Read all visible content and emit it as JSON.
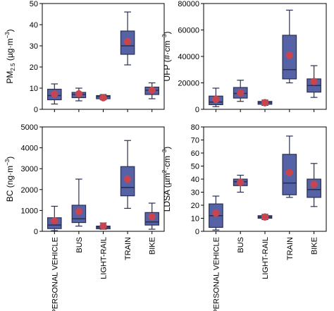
{
  "categories": [
    "PERSONAL VEHICLE",
    "BUS",
    "LIGHT-RAIL",
    "TRAIN",
    "BIKE"
  ],
  "colors": {
    "box_fill": "#5563a6",
    "box_edge": "#2a2f52",
    "mean_marker": "#c8444f",
    "axis": "#000000"
  },
  "chart_data": [
    {
      "type": "boxplot",
      "ylabel_main": "PM",
      "ylabel_sub": "2.5",
      "ylabel_unit": " (µg·m",
      "ylabel_sup": "−3",
      "ylabel_tail": ")",
      "ylim": [
        0,
        50
      ],
      "yticks": [
        0,
        10,
        20,
        30,
        40,
        50
      ],
      "ytick_labels": [
        "0",
        "10",
        "20",
        "30",
        "40",
        "50"
      ],
      "boxes": [
        {
          "category": "PERSONAL VEHICLE",
          "min": 2.5,
          "q1": 4.5,
          "median": 6.5,
          "q3": 9.5,
          "max": 12,
          "mean": 7.2
        },
        {
          "category": "BUS",
          "min": 4,
          "q1": 5.5,
          "median": 7,
          "q3": 8,
          "max": 10,
          "mean": 7.3
        },
        {
          "category": "LIGHT-RAIL",
          "min": 4.5,
          "q1": 5,
          "median": 6,
          "q3": 6.5,
          "max": 7,
          "mean": 5.5
        },
        {
          "category": "TRAIN",
          "min": 21,
          "q1": 26,
          "median": 30,
          "q3": 37,
          "max": 46,
          "mean": 32
        },
        {
          "category": "BIKE",
          "min": 5,
          "q1": 7,
          "median": 9,
          "q3": 10.5,
          "max": 12.5,
          "mean": 9
        }
      ]
    },
    {
      "type": "boxplot",
      "ylabel_main": "UFP (#·cm",
      "ylabel_sup": "−3",
      "ylabel_tail": ")",
      "ylim": [
        0,
        80000
      ],
      "yticks": [
        0,
        20000,
        40000,
        60000,
        80000
      ],
      "ytick_labels": [
        "0",
        "20000",
        "40000",
        "60000",
        "80000"
      ],
      "boxes": [
        {
          "category": "PERSONAL VEHICLE",
          "min": 2000,
          "q1": 3500,
          "median": 5500,
          "q3": 10000,
          "max": 16000,
          "mean": 7500
        },
        {
          "category": "BUS",
          "min": 6000,
          "q1": 8500,
          "median": 12000,
          "q3": 16500,
          "max": 22000,
          "mean": 12500
        },
        {
          "category": "LIGHT-RAIL",
          "min": 3000,
          "q1": 3800,
          "median": 5000,
          "q3": 6000,
          "max": 7000,
          "mean": 5000
        },
        {
          "category": "TRAIN",
          "min": 20000,
          "q1": 23000,
          "median": 30000,
          "q3": 56000,
          "max": 75000,
          "mean": 41000
        },
        {
          "category": "BIKE",
          "min": 9000,
          "q1": 13000,
          "median": 18000,
          "q3": 23000,
          "max": 33000,
          "mean": 21000
        }
      ]
    },
    {
      "type": "boxplot",
      "ylabel_main": "BC (ng·m",
      "ylabel_sup": "−3",
      "ylabel_tail": ")",
      "ylim": [
        0,
        5000
      ],
      "yticks": [
        0,
        1000,
        2000,
        3000,
        4000,
        5000
      ],
      "ytick_labels": [
        "0",
        "1000",
        "2000",
        "3000",
        "4000",
        "5000"
      ],
      "boxes": [
        {
          "category": "PERSONAL VEHICLE",
          "min": 30,
          "q1": 130,
          "median": 300,
          "q3": 650,
          "max": 1200,
          "mean": 500
        },
        {
          "category": "BUS",
          "min": 250,
          "q1": 420,
          "median": 600,
          "q3": 1250,
          "max": 2500,
          "mean": 950
        },
        {
          "category": "LIGHT-RAIL",
          "min": 100,
          "q1": 120,
          "median": 200,
          "q3": 250,
          "max": 400,
          "mean": 250
        },
        {
          "category": "TRAIN",
          "min": 1100,
          "q1": 1700,
          "median": 2100,
          "q3": 3100,
          "max": 4350,
          "mean": 2500
        },
        {
          "category": "BIKE",
          "min": 100,
          "q1": 300,
          "median": 450,
          "q3": 900,
          "max": 1350,
          "mean": 700
        }
      ]
    },
    {
      "type": "boxplot",
      "ylabel_main": "LDSA (µm",
      "ylabel_sup": "2",
      "ylabel_mid": "·cm",
      "ylabel_sup2": "−3",
      "ylabel_tail": ")",
      "ylim": [
        0,
        80
      ],
      "yticks": [
        0,
        10,
        20,
        30,
        40,
        50,
        60,
        70,
        80
      ],
      "ytick_labels": [
        "0",
        "10",
        "20",
        "30",
        "40",
        "50",
        "60",
        "70",
        "80"
      ],
      "boxes": [
        {
          "category": "PERSONAL VEHICLE",
          "min": 1,
          "q1": 3,
          "median": 12,
          "q3": 21,
          "max": 27,
          "mean": 14
        },
        {
          "category": "BUS",
          "min": 30,
          "q1": 35,
          "median": 38,
          "q3": 40,
          "max": 43,
          "mean": 37.5
        },
        {
          "category": "LIGHT-RAIL",
          "min": 9,
          "q1": 10,
          "median": 11,
          "q3": 12,
          "max": 13,
          "mean": 11
        },
        {
          "category": "TRAIN",
          "min": 26,
          "q1": 28,
          "median": 37,
          "q3": 59,
          "max": 73,
          "mean": 45
        },
        {
          "category": "BIKE",
          "min": 19,
          "q1": 26,
          "median": 32,
          "q3": 40,
          "max": 52,
          "mean": 36
        }
      ]
    }
  ]
}
